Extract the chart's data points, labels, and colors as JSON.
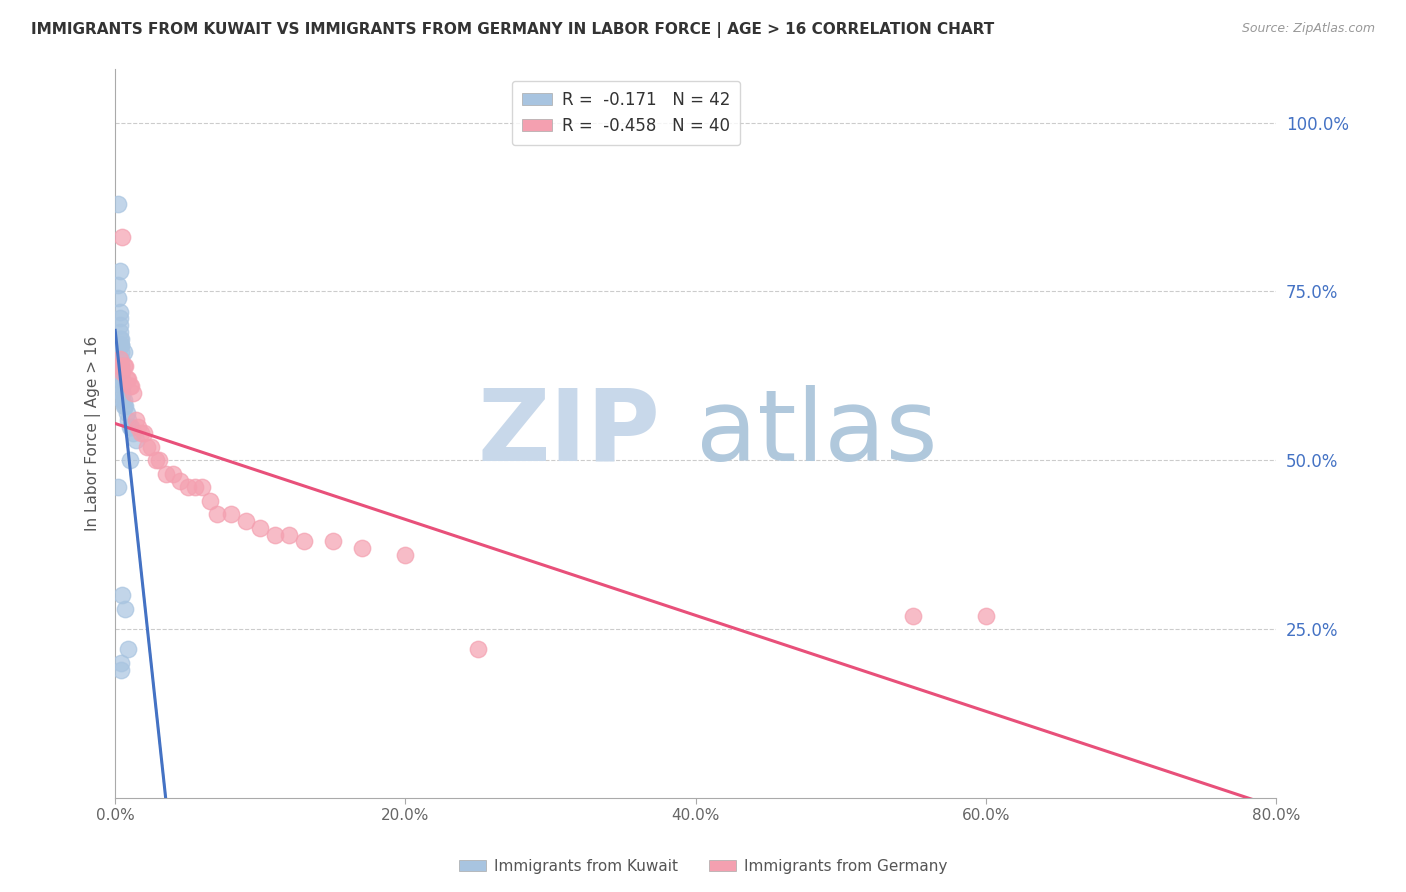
{
  "title": "IMMIGRANTS FROM KUWAIT VS IMMIGRANTS FROM GERMANY IN LABOR FORCE | AGE > 16 CORRELATION CHART",
  "source": "Source: ZipAtlas.com",
  "ylabel_left": "In Labor Force | Age > 16",
  "x_tick_labels": [
    "0.0%",
    "20.0%",
    "40.0%",
    "60.0%",
    "80.0%"
  ],
  "x_tick_values": [
    0.0,
    0.2,
    0.4,
    0.6,
    0.8
  ],
  "y_tick_labels_right": [
    "100.0%",
    "75.0%",
    "50.0%",
    "25.0%"
  ],
  "y_tick_values": [
    1.0,
    0.75,
    0.5,
    0.25
  ],
  "xlim": [
    0.0,
    0.8
  ],
  "ylim": [
    0.0,
    1.08
  ],
  "kuwait_color": "#a8c4e0",
  "germany_color": "#f4a0b0",
  "kuwait_line_color": "#4472c4",
  "germany_line_color": "#e8507a",
  "dashed_line_color": "#a0b8cc",
  "watermark_zip": "ZIP",
  "watermark_atlas": "atlas",
  "watermark_color_zip": "#c8d8ea",
  "watermark_color_atlas": "#b0c8dc",
  "background_color": "#ffffff",
  "kuwait_x": [
    0.002,
    0.002,
    0.003,
    0.003,
    0.003,
    0.003,
    0.003,
    0.004,
    0.004,
    0.004,
    0.004,
    0.004,
    0.004,
    0.004,
    0.004,
    0.005,
    0.005,
    0.005,
    0.005,
    0.005,
    0.005,
    0.006,
    0.006,
    0.007,
    0.008,
    0.009,
    0.01,
    0.011,
    0.012,
    0.014,
    0.002,
    0.003,
    0.004,
    0.005,
    0.006,
    0.007,
    0.009,
    0.01,
    0.002,
    0.004,
    0.003,
    0.004
  ],
  "kuwait_y": [
    0.76,
    0.74,
    0.72,
    0.71,
    0.7,
    0.69,
    0.68,
    0.67,
    0.67,
    0.66,
    0.65,
    0.64,
    0.63,
    0.63,
    0.62,
    0.62,
    0.61,
    0.61,
    0.6,
    0.6,
    0.59,
    0.59,
    0.58,
    0.58,
    0.57,
    0.56,
    0.55,
    0.55,
    0.54,
    0.53,
    0.88,
    0.78,
    0.68,
    0.3,
    0.66,
    0.28,
    0.22,
    0.5,
    0.46,
    0.2,
    0.64,
    0.19
  ],
  "germany_x": [
    0.002,
    0.003,
    0.004,
    0.005,
    0.006,
    0.007,
    0.008,
    0.009,
    0.01,
    0.011,
    0.012,
    0.014,
    0.016,
    0.018,
    0.02,
    0.022,
    0.025,
    0.028,
    0.03,
    0.035,
    0.04,
    0.045,
    0.05,
    0.055,
    0.06,
    0.065,
    0.07,
    0.08,
    0.09,
    0.1,
    0.11,
    0.12,
    0.13,
    0.15,
    0.17,
    0.2,
    0.25,
    0.55,
    0.6,
    0.005
  ],
  "germany_y": [
    0.64,
    0.65,
    0.64,
    0.63,
    0.64,
    0.64,
    0.62,
    0.62,
    0.61,
    0.61,
    0.6,
    0.56,
    0.55,
    0.54,
    0.54,
    0.52,
    0.52,
    0.5,
    0.5,
    0.48,
    0.48,
    0.47,
    0.46,
    0.46,
    0.46,
    0.44,
    0.42,
    0.42,
    0.41,
    0.4,
    0.39,
    0.39,
    0.38,
    0.38,
    0.37,
    0.36,
    0.22,
    0.27,
    0.27,
    0.83
  ],
  "legend_kuwait_label": "R =  -0.171   N = 42",
  "legend_germany_label": "R =  -0.458   N = 40",
  "legend_kuwait_display": "Immigrants from Kuwait",
  "legend_germany_display": "Immigrants from Germany"
}
